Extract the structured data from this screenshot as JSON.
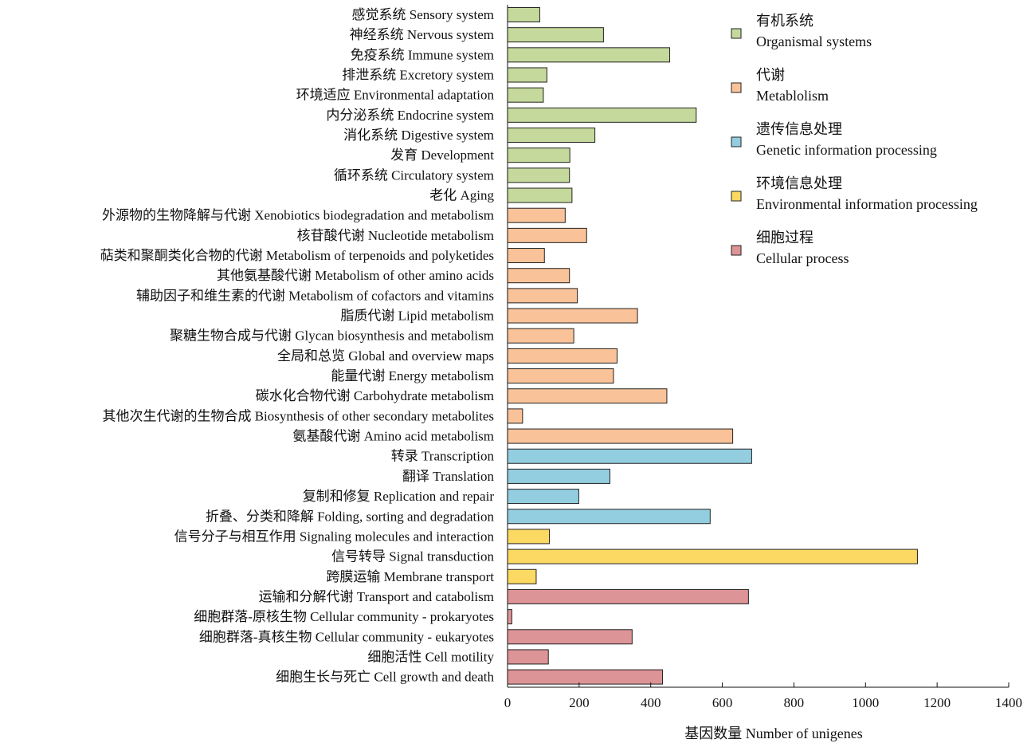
{
  "chart_data": {
    "type": "bar",
    "orientation": "horizontal",
    "xlabel": "基因数量 Number of unigenes",
    "xlim": [
      0,
      1400
    ],
    "xticks": [
      0,
      200,
      400,
      600,
      800,
      1000,
      1200,
      1400
    ],
    "grid": false,
    "legend_position": "top-right",
    "groups": [
      {
        "cn": "有机系统",
        "en": "Organismal systems",
        "color": "#c5d99c"
      },
      {
        "cn": "代谢",
        "en": "Metablolism",
        "color": "#f9c298"
      },
      {
        "cn": "遗传信息处理",
        "en": "Genetic information processing",
        "color": "#93cde0"
      },
      {
        "cn": "环境信息处理",
        "en": "Environmental information processing",
        "color": "#fbd962"
      },
      {
        "cn": "细胞过程",
        "en": "Cellular process",
        "color": "#dd9497"
      }
    ],
    "categories": [
      {
        "label": "感觉系统 Sensory system",
        "value": 90,
        "group": 0
      },
      {
        "label": "神经系统 Nervous system",
        "value": 268,
        "group": 0
      },
      {
        "label": "免疫系统 Immune system",
        "value": 453,
        "group": 0
      },
      {
        "label": "排泄系统 Excretory system",
        "value": 110,
        "group": 0
      },
      {
        "label": "环境适应 Environmental adaptation",
        "value": 100,
        "group": 0
      },
      {
        "label": "内分泌系统 Endocrine system",
        "value": 527,
        "group": 0
      },
      {
        "label": "消化系统 Digestive system",
        "value": 244,
        "group": 0
      },
      {
        "label": "发育 Development",
        "value": 174,
        "group": 0
      },
      {
        "label": "循环系统 Circulatory system",
        "value": 173,
        "group": 0
      },
      {
        "label": "老化 Aging",
        "value": 180,
        "group": 0
      },
      {
        "label": "外源物的生物降解与代谢 Xenobiotics biodegradation and metabolism",
        "value": 161,
        "group": 1
      },
      {
        "label": "核苷酸代谢 Nucleotide metabolism",
        "value": 221,
        "group": 1
      },
      {
        "label": "萜类和聚酮类化合物的代谢 Metabolism of terpenoids and polyketides",
        "value": 103,
        "group": 1
      },
      {
        "label": "其他氨基酸代谢 Metabolism of other amino acids",
        "value": 173,
        "group": 1
      },
      {
        "label": "辅助因子和维生素的代谢 Metabolism of cofactors and vitamins",
        "value": 195,
        "group": 1
      },
      {
        "label": "脂质代谢 Lipid metabolism",
        "value": 363,
        "group": 1
      },
      {
        "label": "聚糖生物合成与代谢 Glycan biosynthesis and metabolism",
        "value": 185,
        "group": 1
      },
      {
        "label": "全局和总览 Global and overview maps",
        "value": 306,
        "group": 1
      },
      {
        "label": "能量代谢 Energy metabolism",
        "value": 296,
        "group": 1
      },
      {
        "label": "碳水化合物代谢 Carbohydrate metabolism",
        "value": 445,
        "group": 1
      },
      {
        "label": "其他次生代谢的生物合成 Biosynthesis of other secondary metabolites",
        "value": 42,
        "group": 1
      },
      {
        "label": "氨基酸代谢 Amino acid metabolism",
        "value": 629,
        "group": 1
      },
      {
        "label": "转录 Transcription",
        "value": 682,
        "group": 2
      },
      {
        "label": "翻译 Translation",
        "value": 286,
        "group": 2
      },
      {
        "label": "复制和修复 Replication and repair",
        "value": 199,
        "group": 2
      },
      {
        "label": "折叠、分类和降解 Folding, sorting and degradation",
        "value": 566,
        "group": 2
      },
      {
        "label": "信号分子与相互作用 Signaling molecules and interaction",
        "value": 117,
        "group": 3
      },
      {
        "label": "信号转导 Signal transduction",
        "value": 1145,
        "group": 3
      },
      {
        "label": "跨膜运输 Membrane transport",
        "value": 80,
        "group": 3
      },
      {
        "label": "运输和分解代谢 Transport and catabolism",
        "value": 673,
        "group": 4
      },
      {
        "label": "细胞群落-原核生物 Cellular community - prokaryotes",
        "value": 12,
        "group": 4
      },
      {
        "label": "细胞群落-真核生物 Cellular community - eukaryotes",
        "value": 348,
        "group": 4
      },
      {
        "label": "细胞活性 Cell motility",
        "value": 114,
        "group": 4
      },
      {
        "label": "细胞生长与死亡 Cell growth and death",
        "value": 433,
        "group": 4
      }
    ]
  }
}
